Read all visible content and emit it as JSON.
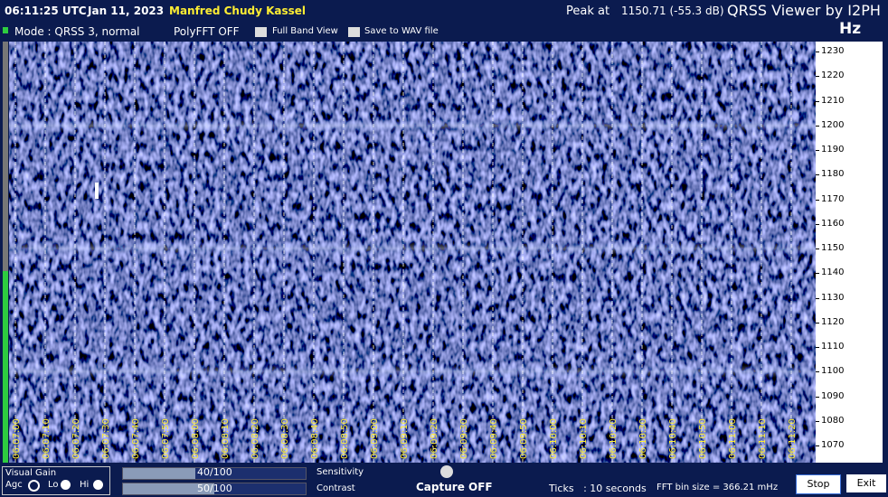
{
  "header": {
    "time": "06:11:25 UTC",
    "date": "Jan 11, 2023",
    "station": "Manfred Chudy Kassel",
    "peak_label": "Peak at",
    "peak_value": "1150.71 (-55.3 dB)",
    "app_title": "QRSS Viewer by I2PH"
  },
  "toolbar": {
    "mode": "Mode : QRSS 3, normal",
    "polyfft": "PolyFFT OFF",
    "full_band": "Full Band View",
    "save_wav": "Save to WAV file",
    "unit": "Hz"
  },
  "frequency_scale": [
    "1230",
    "1220",
    "1210",
    "1200",
    "1190",
    "1180",
    "1170",
    "1160",
    "1150",
    "1140",
    "1130",
    "1120",
    "1110",
    "1100",
    "1090",
    "1080",
    "1070"
  ],
  "time_labels": [
    "06:07:00",
    "06:07:10",
    "06:07:20",
    "06:07:30",
    "06:07:40",
    "06:07:50",
    "06:08:00",
    "06:08:10",
    "06:08:20",
    "06:08:30",
    "06:08:40",
    "06:08:50",
    "06:09:00",
    "06:09:10",
    "06:09:20",
    "06:09:30",
    "06:09:40",
    "06:09:50",
    "06:10:00",
    "06:10:10",
    "06:10:20",
    "06:10:30",
    "06:10:40",
    "06:10:50",
    "06:11:00",
    "06:11:10",
    "06:11:20"
  ],
  "controls": {
    "visual_gain": "Visual Gain",
    "agc": "Agc",
    "lo": "Lo",
    "hi": "Hi",
    "sensitivity_value": "40/100",
    "sensitivity": "Sensitivity",
    "contrast_value": "50/100",
    "contrast": "Contrast",
    "capture": "Capture OFF",
    "ticks": "Ticks   : 10 seconds",
    "fft_bin": "FFT bin size = 366.21 mHz",
    "stop": "Stop",
    "exit": "Exit"
  }
}
